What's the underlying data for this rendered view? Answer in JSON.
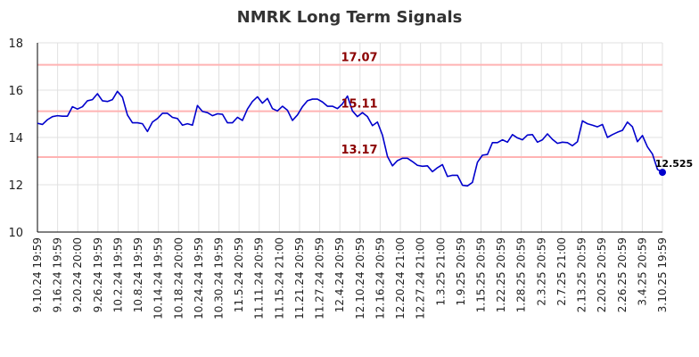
{
  "chart_data": {
    "type": "line",
    "title": "NMRK Long Term Signals",
    "xlabel": "",
    "ylabel": "",
    "ylim": [
      10,
      18
    ],
    "yticks": [
      "10",
      "12",
      "14",
      "16",
      "18"
    ],
    "grid": true,
    "colors": {
      "line": "#0000cc",
      "level": "#ffb3b3",
      "level_label": "#8b0000",
      "grid": "#e0e0e0"
    },
    "x_tick_labels": [
      "9.10.24 19:59",
      "9.16.24 19:59",
      "9.20.24 20:00",
      "9.26.24 19:59",
      "10.2.24 19:59",
      "10.8.24 19:59",
      "10.14.24 19:59",
      "10.18.24 20:00",
      "10.24.24 19:59",
      "10.30.24 19:59",
      "11.5.24 20:59",
      "11.11.24 20:59",
      "11.15.24 21:00",
      "11.21.24 20:59",
      "11.27.24 20:59",
      "12.4.24 20:59",
      "12.10.24 20:59",
      "12.16.24 20:59",
      "12.20.24 21:00",
      "12.27.24 21:00",
      "1.3.25 21:00",
      "1.9.25 20:59",
      "1.15.25 20:59",
      "1.22.25 20:59",
      "1.28.25 20:59",
      "2.3.25 20:59",
      "2.7.25 21:00",
      "2.13.25 20:59",
      "2.20.25 20:59",
      "2.26.25 20:59",
      "3.4.25 20:59",
      "3.10.25 19:59"
    ],
    "levels": [
      {
        "value": 17.07,
        "label": "17.07"
      },
      {
        "value": 15.11,
        "label": "15.11"
      },
      {
        "value": 13.17,
        "label": "13.17"
      }
    ],
    "last_value": {
      "value": 12.525,
      "label": "12.525"
    },
    "series": [
      {
        "values": [
          14.6,
          14.55,
          14.75,
          14.88,
          14.92,
          14.9,
          14.9,
          15.3,
          15.2,
          15.3,
          15.55,
          15.6,
          15.85,
          15.55,
          15.52,
          15.6,
          15.95,
          15.7,
          14.95,
          14.62,
          14.62,
          14.58,
          14.25,
          14.65,
          14.8,
          15.02,
          15.02,
          14.85,
          14.8,
          14.52,
          14.58,
          14.52,
          15.35,
          15.1,
          15.05,
          14.92,
          15.0,
          14.98,
          14.62,
          14.62,
          14.85,
          14.72,
          15.2,
          15.52,
          15.72,
          15.45,
          15.65,
          15.22,
          15.12,
          15.32,
          15.15,
          14.72,
          14.95,
          15.3,
          15.55,
          15.62,
          15.62,
          15.5,
          15.32,
          15.32,
          15.22,
          15.42,
          15.75,
          15.12,
          14.88,
          15.05,
          14.88,
          14.5,
          14.65,
          14.1,
          13.2,
          12.8,
          13.02,
          13.12,
          13.12,
          12.98,
          12.82,
          12.78,
          12.8,
          12.55,
          12.72,
          12.85,
          12.35,
          12.4,
          12.4,
          11.98,
          11.95,
          12.1,
          12.95,
          13.25,
          13.28,
          13.78,
          13.78,
          13.9,
          13.8,
          14.12,
          13.98,
          13.9,
          14.1,
          14.12,
          13.8,
          13.9,
          14.15,
          13.92,
          13.75,
          13.8,
          13.78,
          13.65,
          13.82,
          14.7,
          14.58,
          14.52,
          14.45,
          14.55,
          14.0,
          14.12,
          14.22,
          14.3,
          14.65,
          14.45,
          13.82,
          14.08,
          13.6,
          13.3,
          12.65,
          12.525
        ]
      }
    ]
  }
}
